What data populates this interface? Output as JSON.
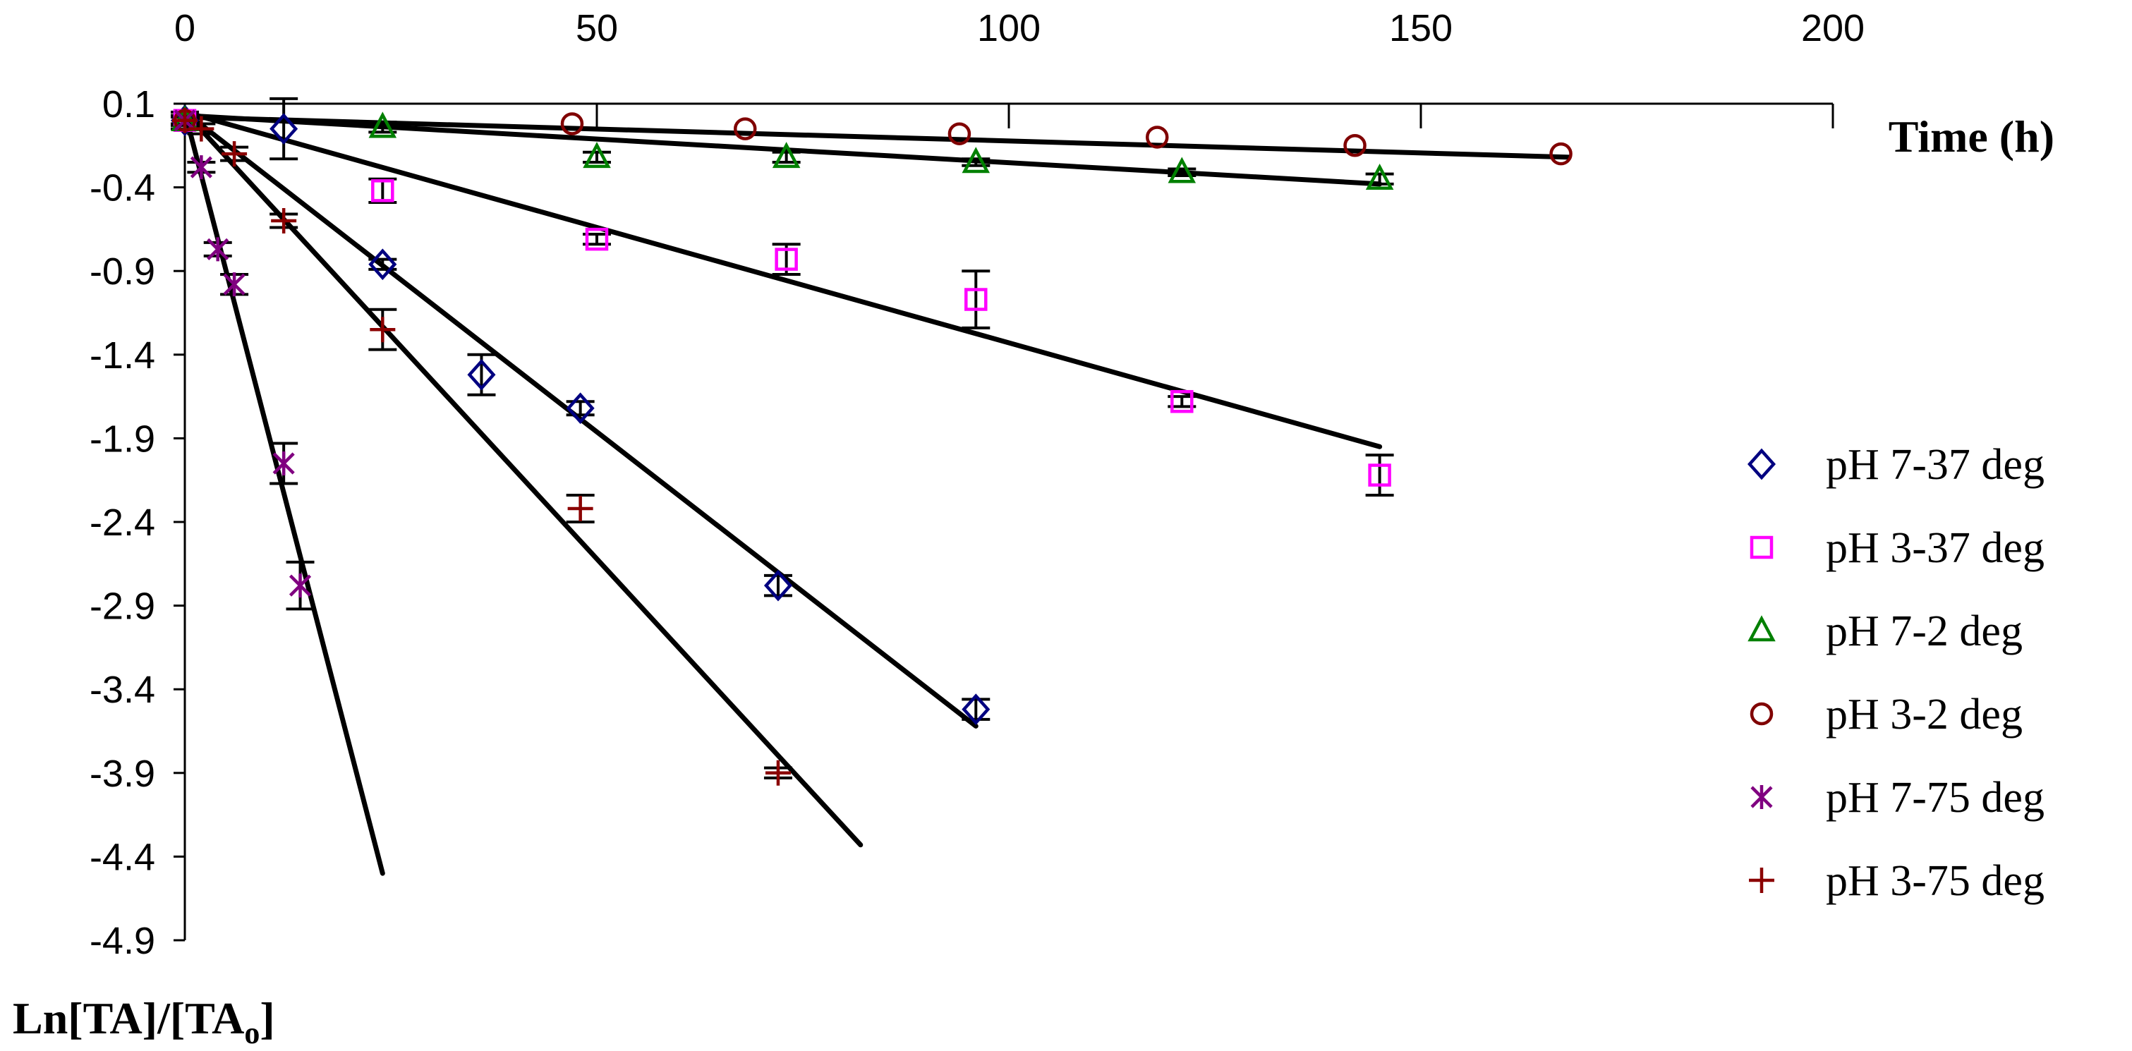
{
  "chart_data": {
    "type": "scatter",
    "title": "",
    "xlabel": "Time (h)",
    "ylabel": "Ln[TA]/[TA",
    "ylabel_sub": "o",
    "ylabel_end": "]",
    "xlim": [
      0,
      200
    ],
    "ylim": [
      -4.9,
      0.1
    ],
    "x_ticks": [
      0,
      50,
      100,
      150,
      200
    ],
    "y_ticks": [
      0.1,
      -0.4,
      -0.9,
      -1.4,
      -1.9,
      -2.4,
      -2.9,
      -3.4,
      -3.9,
      -4.4,
      -4.9
    ],
    "y_tick_labels": [
      "0.1",
      "-0.4",
      "-0.9",
      "-1.4",
      "-1.9",
      "-2.4",
      "-2.9",
      "-3.4",
      "-3.9",
      "-4.4",
      "-4.9"
    ],
    "legend_position": "right",
    "grid": false,
    "series": [
      {
        "name": "pH 7-37 deg",
        "marker": "diamond",
        "color": "#000080",
        "x": [
          0,
          12,
          24,
          36,
          48,
          72,
          96
        ],
        "y": [
          0,
          -0.05,
          -0.86,
          -1.52,
          -1.72,
          -2.78,
          -3.52
        ],
        "err": [
          0.05,
          0.18,
          0.03,
          0.12,
          0.04,
          0.06,
          0.06
        ],
        "fit": {
          "x": [
            0,
            96
          ],
          "y": [
            0.05,
            -3.62
          ]
        }
      },
      {
        "name": "pH 3-37 deg",
        "marker": "square",
        "color": "#ff00ff",
        "x": [
          0,
          24,
          50,
          73,
          96,
          121,
          145
        ],
        "y": [
          0,
          -0.42,
          -0.71,
          -0.83,
          -1.07,
          -1.68,
          -2.12
        ],
        "err": [
          0.03,
          0.07,
          0.03,
          0.09,
          0.17,
          0.03,
          0.12
        ],
        "fit": {
          "x": [
            0,
            145
          ],
          "y": [
            0.05,
            -1.95
          ]
        }
      },
      {
        "name": "pH 7-2 deg",
        "marker": "triangle",
        "color": "#008000",
        "x": [
          0,
          24,
          50,
          73,
          96,
          121,
          145
        ],
        "y": [
          0,
          -0.04,
          -0.22,
          -0.22,
          -0.25,
          -0.31,
          -0.35
        ],
        "err": [
          0.02,
          0.03,
          0.03,
          0.03,
          0.02,
          0.02,
          0.03
        ],
        "fit": {
          "x": [
            0,
            145
          ],
          "y": [
            0.03,
            -0.38
          ]
        }
      },
      {
        "name": "pH 3-2 deg",
        "marker": "circle",
        "color": "#800000",
        "x": [
          0,
          47,
          68,
          94,
          118,
          142,
          167
        ],
        "y": [
          0,
          -0.02,
          -0.05,
          -0.08,
          -0.1,
          -0.15,
          -0.2
        ],
        "err": [],
        "fit": {
          "x": [
            0,
            168
          ],
          "y": [
            0.02,
            -0.22
          ]
        }
      },
      {
        "name": "pH 7-75 deg",
        "marker": "star",
        "color": "#800080",
        "x": [
          0,
          2,
          4,
          6,
          12,
          14
        ],
        "y": [
          0,
          -0.28,
          -0.77,
          -0.98,
          -2.05,
          -2.78
        ],
        "err": [
          0.02,
          0.03,
          0.04,
          0.06,
          0.12,
          0.14
        ],
        "fit": {
          "x": [
            0,
            24
          ],
          "y": [
            0.05,
            -4.5
          ]
        }
      },
      {
        "name": "pH 3-75 deg",
        "marker": "plus",
        "color": "#8b0000",
        "x": [
          0,
          2,
          6,
          12,
          24,
          48,
          72
        ],
        "y": [
          0,
          -0.05,
          -0.2,
          -0.6,
          -1.25,
          -2.32,
          -3.9
        ],
        "err": [
          0.02,
          0.03,
          0.04,
          0.04,
          0.12,
          0.08,
          0.03
        ],
        "fit": {
          "x": [
            0,
            82
          ],
          "y": [
            0.05,
            -4.33
          ]
        }
      }
    ]
  }
}
